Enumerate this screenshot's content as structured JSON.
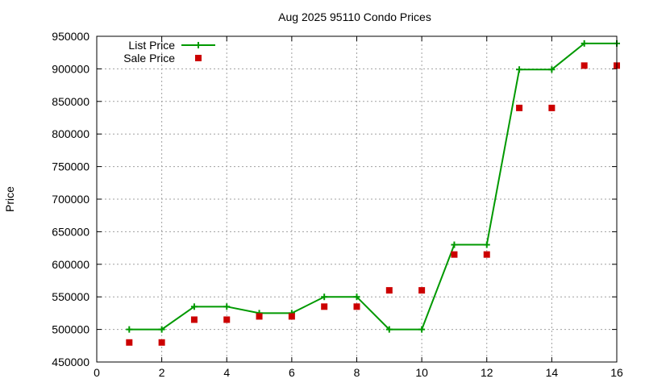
{
  "chart_data": {
    "type": "line",
    "title": "Aug 2025 95110 Condo Prices",
    "xlabel": "",
    "ylabel": "Price",
    "xlim": [
      0,
      16
    ],
    "ylim": [
      450000,
      950000
    ],
    "x_ticks": [
      0,
      2,
      4,
      6,
      8,
      10,
      12,
      14,
      16
    ],
    "y_ticks": [
      450000,
      500000,
      550000,
      600000,
      650000,
      700000,
      750000,
      800000,
      850000,
      900000,
      950000
    ],
    "grid": true,
    "legend_position": "top-left",
    "x": [
      1,
      2,
      3,
      4,
      5,
      6,
      7,
      8,
      9,
      10,
      11,
      12,
      13,
      14,
      15,
      16
    ],
    "series": [
      {
        "name": "List Price",
        "style": "linespoints",
        "marker": "plus",
        "color": "#009900",
        "values": [
          500000,
          500000,
          535000,
          535000,
          525000,
          525000,
          550000,
          550000,
          500000,
          500000,
          630000,
          630000,
          899000,
          899000,
          939000,
          939000
        ]
      },
      {
        "name": "Sale Price",
        "style": "points",
        "marker": "square",
        "color": "#cc0000",
        "values": [
          480000,
          480000,
          515000,
          515000,
          520000,
          520000,
          535000,
          535000,
          560000,
          560000,
          615000,
          615000,
          840000,
          840000,
          905000,
          905000
        ]
      }
    ]
  }
}
